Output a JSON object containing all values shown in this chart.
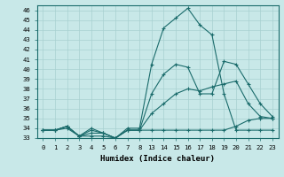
{
  "xlabel": "Humidex (Indice chaleur)",
  "background_color": "#c8e8e8",
  "line_color": "#1a6b6b",
  "grid_color": "#a8d0d0",
  "xticks": [
    0,
    1,
    2,
    3,
    4,
    5,
    6,
    7,
    8,
    13,
    14,
    15,
    16,
    17,
    18,
    19,
    20,
    21,
    22,
    23
  ],
  "xlim": [
    -0.5,
    23.5
  ],
  "ylim": [
    33,
    46.5
  ],
  "lines": [
    {
      "x": [
        0,
        1,
        2,
        3,
        4,
        5,
        6,
        7,
        8,
        13,
        14,
        15,
        16,
        17,
        18,
        19,
        20,
        21,
        22,
        23
      ],
      "y": [
        33.8,
        33.8,
        34.0,
        33.2,
        33.2,
        33.2,
        33.0,
        33.8,
        33.8,
        33.8,
        33.8,
        33.8,
        33.8,
        33.8,
        33.8,
        33.8,
        34.2,
        34.8,
        35.0,
        35.0
      ]
    },
    {
      "x": [
        0,
        1,
        2,
        3,
        4,
        5,
        6,
        7,
        8,
        13,
        14,
        15,
        16,
        17,
        18,
        19,
        20,
        21,
        22,
        23
      ],
      "y": [
        33.8,
        33.8,
        34.2,
        33.2,
        33.5,
        33.5,
        33.0,
        33.8,
        33.8,
        35.5,
        36.5,
        37.5,
        38.0,
        37.8,
        38.2,
        38.5,
        38.8,
        36.5,
        35.2,
        35.0
      ]
    },
    {
      "x": [
        0,
        1,
        2,
        3,
        4,
        5,
        6,
        7,
        8,
        13,
        14,
        15,
        16,
        17,
        18,
        19,
        20,
        21,
        22,
        23
      ],
      "y": [
        33.8,
        33.8,
        34.2,
        33.2,
        33.8,
        33.5,
        33.0,
        33.8,
        33.8,
        37.5,
        39.5,
        40.5,
        40.2,
        37.5,
        37.5,
        40.8,
        40.5,
        38.5,
        36.5,
        35.2
      ]
    },
    {
      "x": [
        0,
        1,
        2,
        3,
        4,
        5,
        6,
        7,
        8,
        13,
        14,
        15,
        16,
        17,
        18,
        19,
        20,
        21,
        22,
        23
      ],
      "y": [
        33.8,
        33.8,
        34.2,
        33.2,
        34.0,
        33.5,
        33.0,
        34.0,
        34.0,
        40.5,
        44.2,
        45.2,
        46.2,
        44.5,
        43.5,
        37.5,
        33.8,
        33.8,
        33.8,
        33.8
      ]
    }
  ]
}
